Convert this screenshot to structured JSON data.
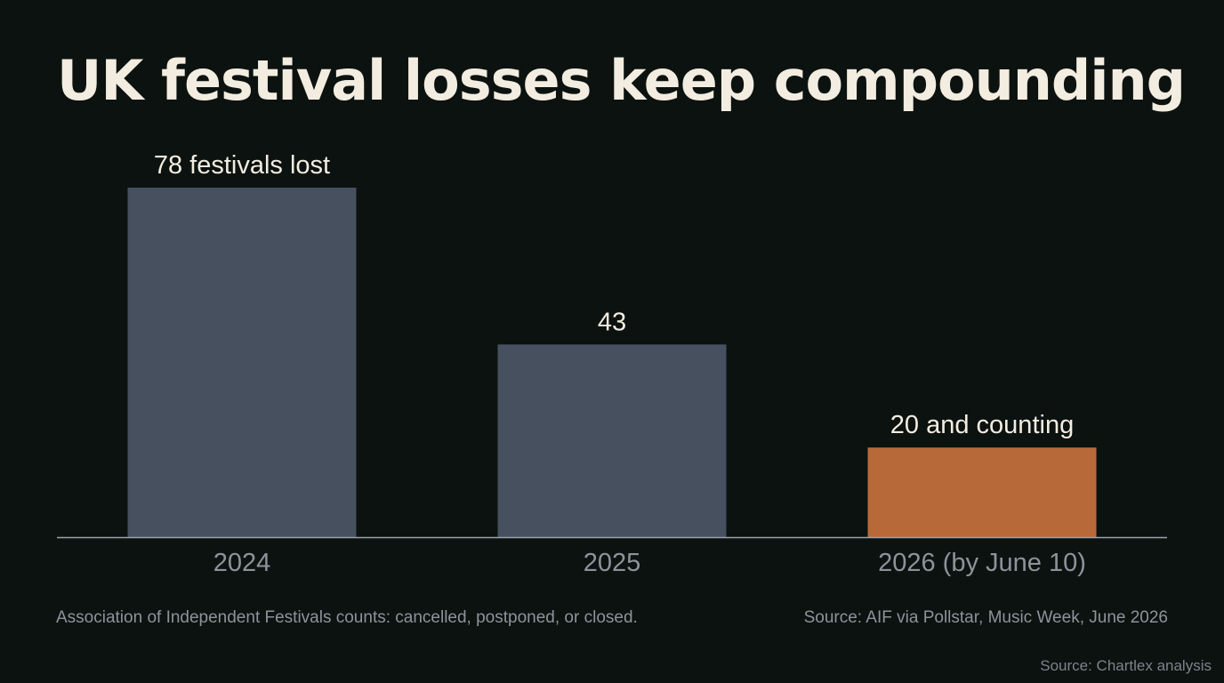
{
  "colors": {
    "background": "#0c120f",
    "title": "#f2ede0",
    "bar_default": "#46505f",
    "bar_highlight": "#b8693a",
    "data_label": "#f2ede0",
    "tick_label": "#8d939b",
    "baseline": "#9aa3ad",
    "footnote": "#8d939b"
  },
  "header": {
    "title": "UK festival losses keep compounding"
  },
  "footer": {
    "note": "Association of Independent Festivals counts: cancelled, postponed, or closed.",
    "source": "Source: AIF via Pollstar, Music Week, June 2026",
    "credit": "Source: Chartlex analysis"
  },
  "chart_data": {
    "type": "bar",
    "title": "UK festival losses keep compounding",
    "xlabel": "",
    "ylabel": "",
    "categories": [
      "2024",
      "2025",
      "2026 (by June 10)"
    ],
    "values": [
      78,
      43,
      20
    ],
    "data_labels": [
      "78 festivals lost",
      "43",
      "20 and counting"
    ],
    "highlight_index": 2,
    "ylim": [
      0,
      78
    ],
    "grid": false,
    "legend": "none"
  }
}
